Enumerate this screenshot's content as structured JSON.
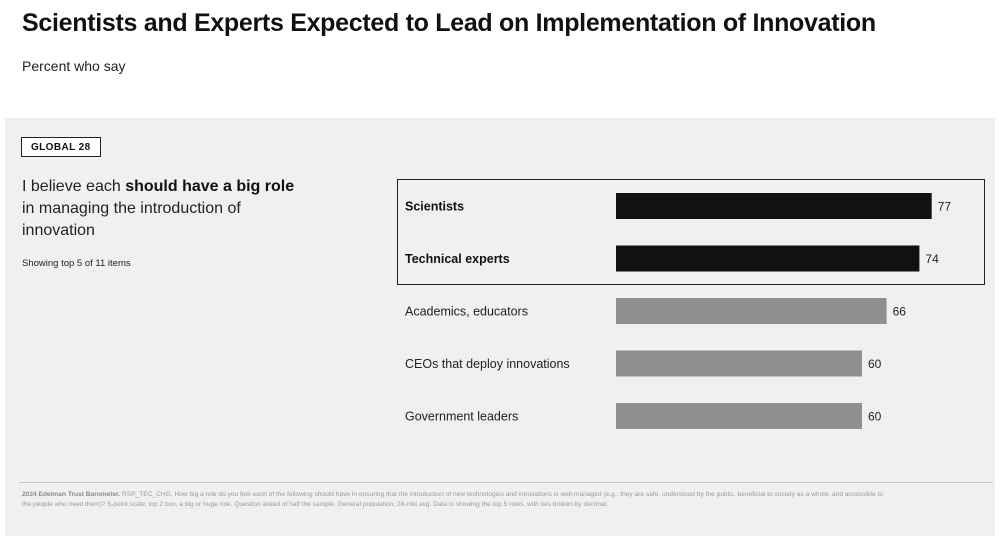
{
  "header": {
    "title": "Scientists and Experts Expected to Lead on Implementation of Innovation",
    "subtitle": "Percent who say"
  },
  "panel": {
    "badge": "GLOBAL 28",
    "question_pre": "I believe each ",
    "question_bold": "should have a big role",
    "question_post": " in managing the introduction of innovation",
    "showing": "Showing top 5 of 11 items"
  },
  "chart_data": {
    "type": "bar",
    "orientation": "horizontal",
    "categories": [
      "Scientists",
      "Technical experts",
      "Academics, educators",
      "CEOs that deploy innovations",
      "Government leaders"
    ],
    "values": [
      77,
      74,
      66,
      60,
      60
    ],
    "highlighted": [
      true,
      true,
      false,
      false,
      false
    ],
    "colors": {
      "highlight": "#111111",
      "default": "#8f8f8f"
    },
    "xlim": [
      0,
      100
    ],
    "grid": false,
    "legend": "none"
  },
  "footnote": {
    "source": "2024 Edelman Trust Barometer.",
    "text": " RSP_TEC_CHG. How big a role do you feel each of the following should have in ensuring that the introduction of new technologies and innovations is well-managed (e.g., they are safe, understood by the public, beneficial to society as a whole, and accessible to the people who need them)? 5-point scale; top 2 box, a big or huge role. Question asked of half the sample. General population, 28-mkt avg. Data is showing the top 5 roles, with ties broken by decimal."
  }
}
